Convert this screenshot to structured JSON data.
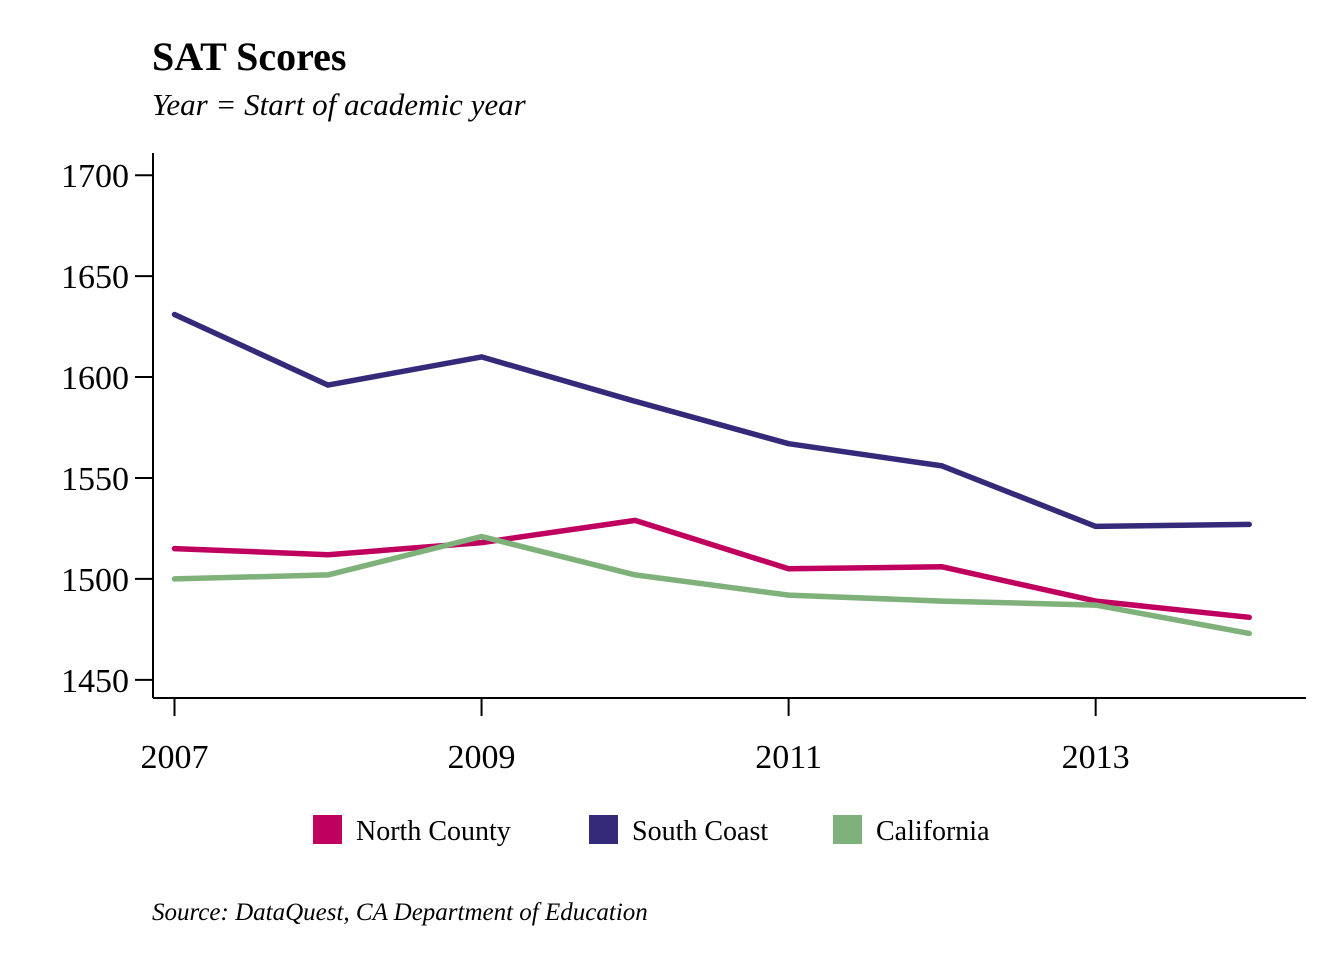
{
  "chart_data": {
    "type": "line",
    "title": "SAT Scores",
    "subtitle": "Year = Start of academic year",
    "source": "Source: DataQuest, CA Department of Education",
    "xlabel": "",
    "ylabel": "",
    "x": [
      2007,
      2008,
      2009,
      2010,
      2011,
      2012,
      2013,
      2014
    ],
    "xlim": [
      2006.86,
      2014.37
    ],
    "ylim": [
      1441,
      1711
    ],
    "x_ticks": [
      2007,
      2009,
      2011,
      2013
    ],
    "x_tick_labels": [
      "2007",
      "2009",
      "2011",
      "2013"
    ],
    "y_ticks": [
      1450,
      1500,
      1550,
      1600,
      1650,
      1700
    ],
    "y_tick_labels": [
      "1450",
      "1500",
      "1550",
      "1600",
      "1650",
      "1700"
    ],
    "grid": false,
    "legend_position": "bottom",
    "series": [
      {
        "name": "North County",
        "color": "#c0005e",
        "values": [
          1515,
          1512,
          1518,
          1529,
          1505,
          1506,
          1489,
          1481
        ]
      },
      {
        "name": "South Coast",
        "color": "#352a7a",
        "values": [
          1631,
          1596,
          1610,
          1588,
          1567,
          1556,
          1526,
          1527
        ]
      },
      {
        "name": "California",
        "color": "#7fb17a",
        "values": [
          1500,
          1502,
          1521,
          1502,
          1492,
          1489,
          1487,
          1473
        ]
      }
    ]
  }
}
